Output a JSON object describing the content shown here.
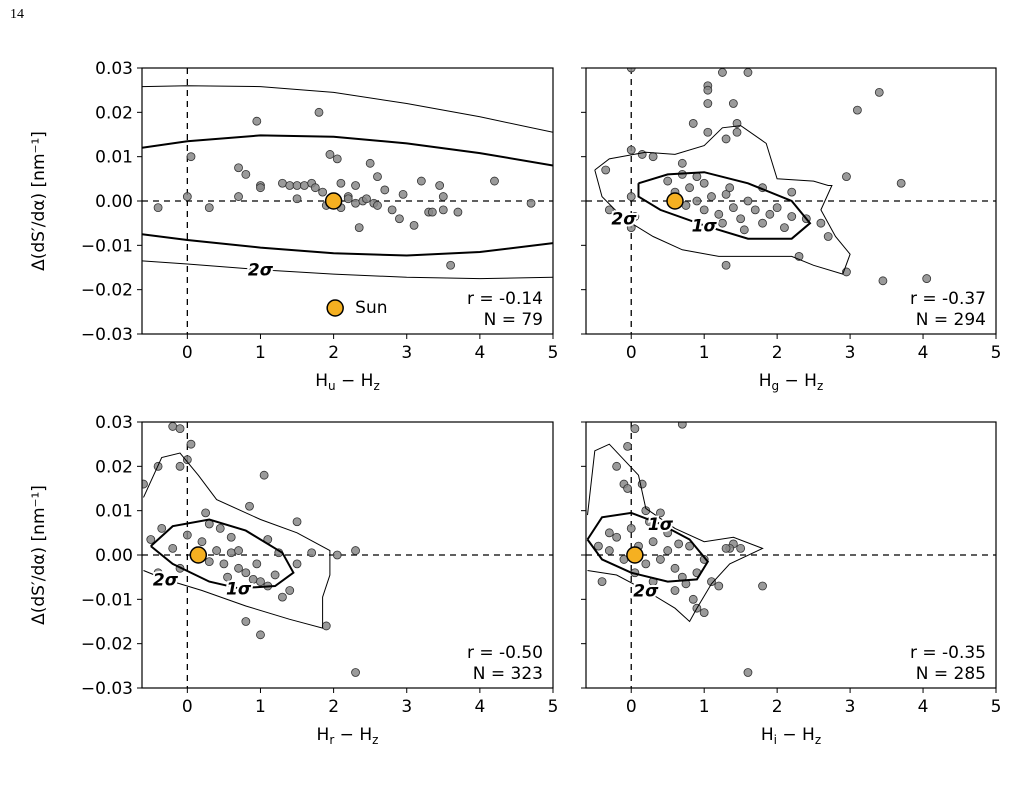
{
  "page_number": "14",
  "chart_data": [
    {
      "type": "scatter",
      "ylabel": "Δ(dS′/dα) [nm⁻¹]",
      "xlabel_parts": [
        {
          "text": "H"
        },
        {
          "text": "u",
          "sub": true
        },
        {
          "text": " − H"
        },
        {
          "text": "z",
          "sub": true
        }
      ],
      "xlim": [
        -0.62,
        5
      ],
      "ylim": [
        -0.03,
        0.03
      ],
      "xticks": [
        0,
        1,
        2,
        3,
        4,
        5
      ],
      "yticks": [
        {
          "value": -0.03,
          "label": "−0.03"
        },
        {
          "value": -0.02,
          "label": "−0.02"
        },
        {
          "value": -0.01,
          "label": "−0.01"
        },
        {
          "value": 0,
          "label": "0.00"
        },
        0.01,
        0.02,
        0.03
      ],
      "hline": 0,
      "vline": 0,
      "color": "#888888",
      "x": [
        -0.4,
        0,
        0.05,
        0.3,
        0.7,
        0.8,
        0.7,
        0.95,
        1,
        1,
        1.3,
        1.4,
        1.5,
        1.6,
        1.5,
        1.7,
        1.75,
        1.8,
        1.85,
        1.9,
        1.95,
        2.05,
        2.1,
        2.1,
        2.2,
        2.3,
        2.3,
        2.35,
        2.4,
        2.5,
        2.55,
        2.6,
        2.6,
        2.8,
        2.9,
        2.95,
        3.1,
        3.3,
        3.35,
        3.5,
        3.6,
        3.7,
        3.5,
        4.2,
        3.2,
        3.45,
        4.7,
        2.7,
        2.45,
        2.2
      ],
      "y": [
        -0.0015,
        0.001,
        0.01,
        -0.0015,
        0.0075,
        0.006,
        0.001,
        0.018,
        0.0035,
        0.003,
        0.004,
        0.0035,
        0.0035,
        0.0035,
        0.0005,
        0.004,
        0.003,
        0.02,
        0.002,
        -0.001,
        0.0105,
        0.0095,
        0.004,
        -0.0015,
        0.001,
        0.0035,
        -0.0005,
        -0.006,
        0,
        0.0085,
        -0.0005,
        0.0055,
        -0.001,
        -0.002,
        -0.004,
        0.0015,
        -0.0055,
        -0.0025,
        -0.0025,
        0.001,
        -0.0145,
        -0.0025,
        -0.002,
        0.0045,
        0.0045,
        0.0035,
        -0.0005,
        0.0025,
        0.0005,
        0.0005
      ],
      "sun": {
        "name": "Sun",
        "x": 2,
        "y": 0,
        "color": "#f5b021"
      },
      "contours": [
        {
          "linewidth": 2,
          "x": [
            -0.62,
            0,
            1,
            2,
            3,
            4,
            5
          ],
          "y": [
            0.012,
            0.0135,
            0.0148,
            0.0145,
            0.013,
            0.0108,
            0.008
          ]
        },
        {
          "linewidth": 2,
          "x": [
            -0.62,
            0,
            1,
            2,
            3,
            4,
            5
          ],
          "y": [
            -0.0075,
            -0.0088,
            -0.0105,
            -0.0118,
            -0.0123,
            -0.0115,
            -0.0095
          ]
        },
        {
          "linewidth": 1,
          "x": [
            -0.62,
            0,
            1,
            2,
            3,
            4,
            5
          ],
          "y": [
            0.0258,
            0.026,
            0.0258,
            0.0245,
            0.022,
            0.019,
            0.0155
          ]
        },
        {
          "linewidth": 1,
          "label": "2σ",
          "x": [
            -0.62,
            0,
            1,
            2,
            3,
            4,
            5
          ],
          "y": [
            -0.0135,
            -0.0142,
            -0.0155,
            -0.0165,
            -0.0172,
            -0.0175,
            -0.0172
          ]
        }
      ],
      "annotations": [
        "r = -0.14",
        "N = 79"
      ]
    },
    {
      "type": "scatter",
      "xlabel_parts": [
        {
          "text": "H"
        },
        {
          "text": "g",
          "sub": true
        },
        {
          "text": " − H"
        },
        {
          "text": "z",
          "sub": true
        }
      ],
      "xlim": [
        -0.62,
        5
      ],
      "ylim": [
        -0.03,
        0.03
      ],
      "xticks": [
        0,
        1,
        2,
        3,
        4,
        5
      ],
      "yticks": [
        -0.03,
        -0.02,
        -0.01,
        0,
        0.01,
        0.02,
        0.03
      ],
      "hline": 0,
      "vline": 0,
      "color": "#888888",
      "x": [
        0,
        1.25,
        1.6,
        1.05,
        1.05,
        1.05,
        1.05,
        1.4,
        1.45,
        1.45,
        1.3,
        0.85,
        0,
        0.15,
        0.3,
        -0.35,
        -0.3,
        0,
        0.05,
        0,
        2.95,
        2.95,
        3.45,
        3.1,
        3.4,
        4.05,
        3.7,
        2.3,
        2.7,
        2.6,
        0.7,
        0.7,
        1.3,
        0.5,
        0.6,
        0.8,
        0.9,
        1.0,
        1.1,
        1.2,
        1.3,
        1.4,
        1.5,
        1.6,
        1.7,
        1.8,
        1.9,
        2.0,
        2.1,
        2.2,
        1.0,
        0.75,
        1.35,
        1.8,
        2.4,
        1.55,
        0.9,
        1.25,
        2.2
      ],
      "y": [
        0.03,
        0.029,
        0.029,
        0.026,
        0.025,
        0.022,
        0.0155,
        0.022,
        0.0175,
        0.0155,
        0.014,
        0.0175,
        0.0115,
        0.0105,
        0.01,
        0.007,
        -0.002,
        0.001,
        -0.0035,
        -0.006,
        0.0055,
        -0.016,
        -0.018,
        0.0205,
        0.0245,
        -0.0175,
        0.004,
        -0.0125,
        -0.008,
        -0.005,
        0.006,
        0.0085,
        -0.0145,
        0.0045,
        0.002,
        0.003,
        0,
        -0.002,
        0.001,
        -0.003,
        0.0015,
        -0.0015,
        -0.004,
        0,
        -0.002,
        -0.005,
        -0.003,
        -0.0015,
        -0.006,
        -0.0035,
        0.004,
        -0.001,
        0.003,
        0.003,
        -0.004,
        -0.0065,
        0.0055,
        -0.005,
        0.002
      ],
      "sun": {
        "x": 0.6,
        "y": 0,
        "color": "#f5b021"
      },
      "contours": [
        {
          "linewidth": 2,
          "label": "1σ",
          "x": [
            0.1,
            0.5,
            1.0,
            1.6,
            2.2,
            2.45,
            2.2,
            1.6,
            1.0,
            0.4,
            0.1,
            0.1
          ],
          "y": [
            0.004,
            0.006,
            0.0065,
            0.004,
            0,
            -0.005,
            -0.0085,
            -0.0085,
            -0.0055,
            -0.002,
            0.001,
            0.004
          ]
        },
        {
          "linewidth": 1,
          "label": "2σ",
          "x": [
            -0.5,
            -0.3,
            0.2,
            0.6,
            1.0,
            1.25,
            1.5,
            1.85,
            2.0,
            2.5,
            2.7,
            2.75,
            2.6,
            2.8,
            3.0,
            2.9,
            2.5,
            2.2,
            1.8,
            1.2,
            0.7,
            0.3,
            -0.1,
            -0.4,
            -0.5
          ],
          "y": [
            0.007,
            0.0095,
            0.011,
            0.0105,
            0.0125,
            0.0165,
            0.017,
            0.013,
            0.005,
            0.0045,
            0.0035,
            0.0035,
            -0.002,
            -0.008,
            -0.012,
            -0.0165,
            -0.0145,
            -0.0125,
            -0.0125,
            -0.0125,
            -0.011,
            -0.008,
            -0.004,
            0.001,
            0.007
          ]
        }
      ],
      "annotations": [
        "r = -0.37",
        "N = 294"
      ]
    },
    {
      "type": "scatter",
      "ylabel": "Δ(dS′/dα) [nm⁻¹]",
      "xlabel_parts": [
        {
          "text": "H"
        },
        {
          "text": "r",
          "sub": true
        },
        {
          "text": " − H"
        },
        {
          "text": "z",
          "sub": true
        }
      ],
      "xlim": [
        -0.62,
        5
      ],
      "ylim": [
        -0.03,
        0.03
      ],
      "xticks": [
        0,
        1,
        2,
        3,
        4,
        5
      ],
      "yticks": [
        {
          "value": -0.03,
          "label": "−0.03"
        },
        {
          "value": -0.02,
          "label": "−0.02"
        },
        {
          "value": -0.01,
          "label": "−0.01"
        },
        {
          "value": 0,
          "label": "0.00"
        },
        0.01,
        0.02,
        0.03
      ],
      "hline": 0,
      "vline": 0,
      "color": "#888888",
      "x": [
        -0.2,
        -0.1,
        0.05,
        -0.6,
        -0.4,
        -0.1,
        0,
        1.05,
        0.85,
        1.5,
        1.7,
        2.05,
        2.3,
        2.3,
        1.9,
        1.0,
        0.8,
        1.3,
        1.4,
        -0.5,
        -0.4,
        0,
        0.2,
        0.4,
        0.5,
        0.6,
        0.7,
        0.8,
        0.9,
        1.0,
        1.1,
        0.3,
        0.45,
        0.6,
        0.15,
        -0.2,
        0.7,
        1.2,
        1.5,
        0.3,
        -0.1,
        0.55,
        0.95,
        1.25,
        1.1,
        -0.35,
        0.25
      ],
      "y": [
        0.029,
        0.0285,
        0.025,
        0.016,
        0.02,
        0.02,
        0.0215,
        0.018,
        0.011,
        0.0075,
        0.0005,
        0,
        0.001,
        -0.0265,
        -0.016,
        -0.018,
        -0.015,
        -0.0095,
        -0.008,
        0.0035,
        -0.004,
        0.0045,
        0.003,
        0.001,
        -0.002,
        0.0005,
        -0.003,
        -0.004,
        -0.0055,
        -0.006,
        -0.007,
        -0.0015,
        0.006,
        0.004,
        -0.0005,
        0.0015,
        0.001,
        -0.0045,
        -0.002,
        0.007,
        -0.003,
        -0.005,
        -0.002,
        0.0005,
        0.0035,
        0.006,
        0.0095
      ],
      "sun": {
        "x": 0.15,
        "y": 0,
        "color": "#f5b021"
      },
      "contours": [
        {
          "linewidth": 2,
          "label": "1σ",
          "x": [
            -0.5,
            -0.2,
            0.3,
            0.8,
            1.3,
            1.45,
            1.2,
            0.7,
            0.3,
            -0.2,
            -0.5
          ],
          "y": [
            0.002,
            0.0065,
            0.008,
            0.0055,
            0.0005,
            -0.004,
            -0.007,
            -0.0075,
            -0.006,
            -0.002,
            0.002
          ]
        },
        {
          "linewidth": 1,
          "label": "2σ",
          "x": [
            -0.6,
            -0.35,
            -0.1,
            0.15,
            0.4,
            1.0,
            1.5,
            1.95,
            1.95,
            1.85,
            1.85,
            1.4,
            0.8,
            0.2,
            -0.3,
            -0.6
          ],
          "y": [
            0.013,
            0.022,
            0.023,
            0.018,
            0.0125,
            0.008,
            0.005,
            0.001,
            -0.0045,
            -0.0095,
            -0.0165,
            -0.0145,
            -0.0115,
            -0.008,
            -0.0055,
            -0.0035
          ]
        }
      ],
      "annotations": [
        "r = -0.50",
        "N = 323"
      ]
    },
    {
      "type": "scatter",
      "xlabel_parts": [
        {
          "text": "H"
        },
        {
          "text": "i",
          "sub": true
        },
        {
          "text": " − H"
        },
        {
          "text": "z",
          "sub": true
        }
      ],
      "xlim": [
        -0.62,
        5
      ],
      "ylim": [
        -0.03,
        0.03
      ],
      "xticks": [
        0,
        1,
        2,
        3,
        4,
        5
      ],
      "yticks": [
        -0.03,
        -0.02,
        -0.01,
        0,
        0.01,
        0.02,
        0.03
      ],
      "hline": 0,
      "vline": 0,
      "color": "#888888",
      "x": [
        -0.05,
        0.05,
        0.7,
        -0.2,
        -0.1,
        -0.05,
        0.15,
        -0.45,
        -0.3,
        -0.2,
        -0.1,
        0,
        0.1,
        0.2,
        0.3,
        0.4,
        0.5,
        0.6,
        0.7,
        0.8,
        0.9,
        1.0,
        1.1,
        1.2,
        1.5,
        1.4,
        1.35,
        1.8,
        1.6,
        0.9,
        1.0,
        0.85,
        0.6,
        0.4,
        0.2,
        -0.4,
        0.3,
        0.5,
        0.05,
        -0.3,
        0.25,
        0.65,
        0.75,
        1.3
      ],
      "y": [
        0.0245,
        0.0285,
        0.0295,
        0.02,
        0.016,
        0.015,
        0.016,
        0.002,
        0.001,
        0.004,
        -0.001,
        0.006,
        0.002,
        -0.002,
        0.003,
        -0.001,
        0.001,
        -0.003,
        -0.005,
        0.002,
        -0.004,
        -0.001,
        -0.006,
        -0.007,
        0.0015,
        0.0025,
        0.0015,
        -0.007,
        -0.0265,
        -0.012,
        -0.013,
        -0.01,
        -0.008,
        0.0095,
        0.01,
        -0.006,
        -0.006,
        0.005,
        -0.004,
        0.005,
        0.0075,
        0.0025,
        -0.0065,
        0.0015
      ],
      "sun": {
        "x": 0.05,
        "y": 0,
        "color": "#f5b021"
      },
      "contours": [
        {
          "linewidth": 2,
          "label": "1σ",
          "x": [
            -0.6,
            -0.4,
            0,
            0.4,
            0.8,
            1.05,
            0.9,
            0.5,
            0,
            -0.4,
            -0.6
          ],
          "y": [
            0.0035,
            0.0085,
            0.0095,
            0.007,
            0.0035,
            -0.0015,
            -0.0055,
            -0.006,
            -0.004,
            -0.001,
            0.0035
          ]
        },
        {
          "linewidth": 1,
          "label": "2σ",
          "x": [
            -0.6,
            -0.5,
            -0.3,
            0.1,
            0.2,
            0.6,
            1.0,
            1.4,
            1.8,
            1.35,
            1.1,
            0.9,
            0.8,
            0.6,
            0.2,
            -0.2,
            -0.6
          ],
          "y": [
            0.009,
            0.0235,
            0.025,
            0.018,
            0.0105,
            0.006,
            0.003,
            0.004,
            0.0015,
            -0.002,
            -0.0065,
            -0.012,
            -0.015,
            -0.012,
            -0.008,
            -0.0045,
            -0.0035
          ]
        }
      ],
      "annotations": [
        "r = -0.35",
        "N = 285"
      ]
    }
  ]
}
